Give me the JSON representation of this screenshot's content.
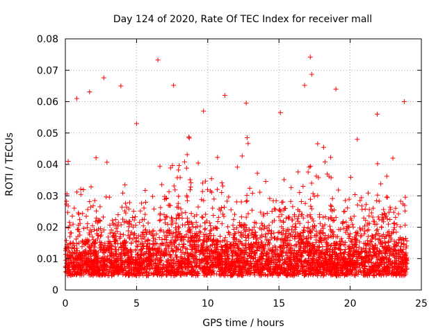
{
  "chart_data": {
    "type": "scatter",
    "title": "Day 124 of 2020, Rate Of TEC Index for receiver mall",
    "xlabel": "GPS time / hours",
    "ylabel": "ROTI / TECUs",
    "xlim": [
      0,
      25
    ],
    "ylim": [
      0,
      0.08
    ],
    "x_ticks": [
      0,
      5,
      10,
      15,
      20,
      25
    ],
    "x_tick_labels": [
      "0",
      "5",
      "10",
      "15",
      "20",
      "25"
    ],
    "y_ticks": [
      0,
      0.01,
      0.02,
      0.03,
      0.04,
      0.05,
      0.06,
      0.07,
      0.08
    ],
    "y_tick_labels": [
      "0",
      "0.01",
      "0.02",
      "0.03",
      "0.04",
      "0.05",
      "0.06",
      "0.07",
      "0.08"
    ],
    "grid": true,
    "marker": "+",
    "color": "#ff0000",
    "x_range_of_data": [
      0,
      24
    ],
    "notable_points": [
      {
        "x": 6.5,
        "y": 0.0733
      },
      {
        "x": 17.2,
        "y": 0.0742
      },
      {
        "x": 2.7,
        "y": 0.0676
      },
      {
        "x": 17.3,
        "y": 0.0687
      },
      {
        "x": 16.8,
        "y": 0.0652
      },
      {
        "x": 7.6,
        "y": 0.0652
      },
      {
        "x": 3.9,
        "y": 0.065
      },
      {
        "x": 19.0,
        "y": 0.064
      },
      {
        "x": 1.7,
        "y": 0.0631
      },
      {
        "x": 11.2,
        "y": 0.062
      },
      {
        "x": 0.8,
        "y": 0.061
      },
      {
        "x": 23.8,
        "y": 0.06
      },
      {
        "x": 12.7,
        "y": 0.0595
      },
      {
        "x": 9.7,
        "y": 0.057
      },
      {
        "x": 15.1,
        "y": 0.0565
      },
      {
        "x": 21.9,
        "y": 0.056
      },
      {
        "x": 5.0,
        "y": 0.053
      },
      {
        "x": 20.5,
        "y": 0.048
      },
      {
        "x": 0.2,
        "y": 0.041
      },
      {
        "x": 23.0,
        "y": 0.042
      }
    ]
  }
}
